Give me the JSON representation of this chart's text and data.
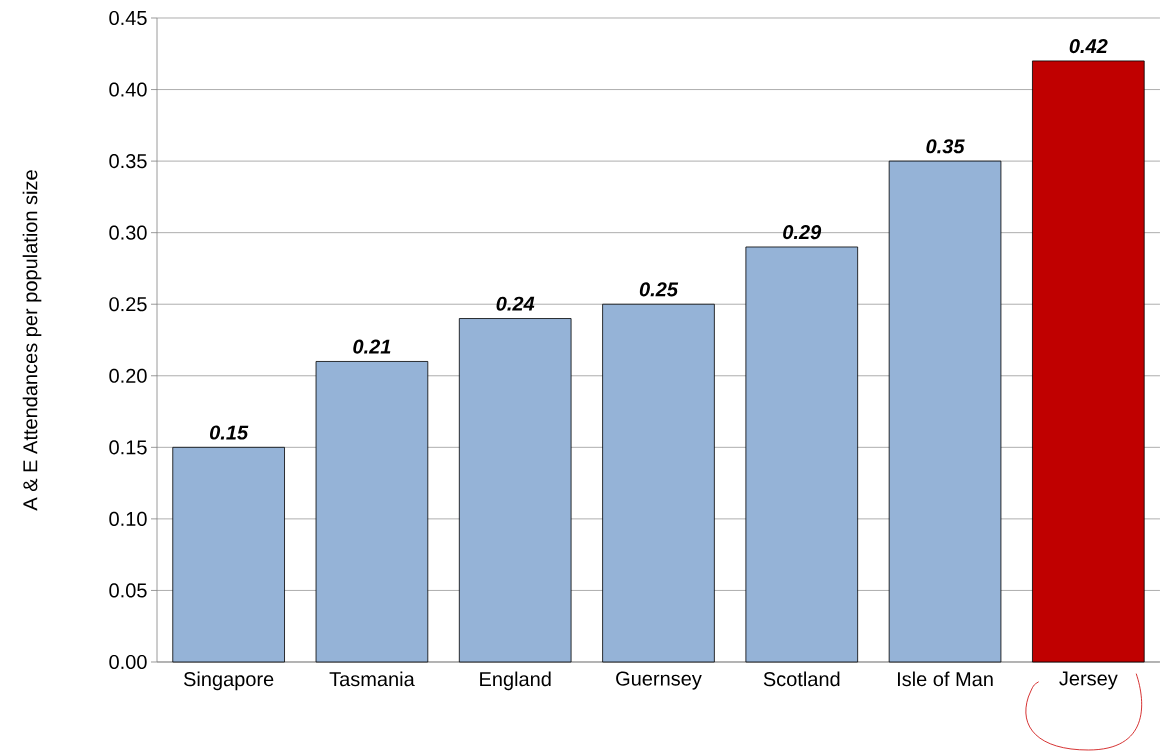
{
  "chart_data": {
    "type": "bar",
    "ylabel": "A & E Attendances per population size",
    "categories": [
      "Singapore",
      "Tasmania",
      "England",
      "Guernsey",
      "Scotland",
      "Isle of Man",
      "Jersey"
    ],
    "values": [
      0.15,
      0.21,
      0.24,
      0.25,
      0.29,
      0.35,
      0.42
    ],
    "colors": [
      "#95b3d7",
      "#95b3d7",
      "#95b3d7",
      "#95b3d7",
      "#95b3d7",
      "#95b3d7",
      "#c00000"
    ],
    "data_labels": true,
    "ylim": [
      0,
      0.45
    ],
    "yticks": [
      {
        "value": 0,
        "label": "0.00"
      },
      {
        "value": 0.05,
        "label": "0.05"
      },
      {
        "value": 0.1,
        "label": "0.10"
      },
      {
        "value": 0.15,
        "label": "0.15"
      },
      {
        "value": 0.2,
        "label": "0.20"
      },
      {
        "value": 0.25,
        "label": "0.25"
      },
      {
        "value": 0.3,
        "label": "0.30"
      },
      {
        "value": 0.35,
        "label": "0.35"
      },
      {
        "value": 0.4,
        "label": "0.40"
      },
      {
        "value": 0.45,
        "label": "0.45"
      }
    ],
    "grid": "y"
  }
}
